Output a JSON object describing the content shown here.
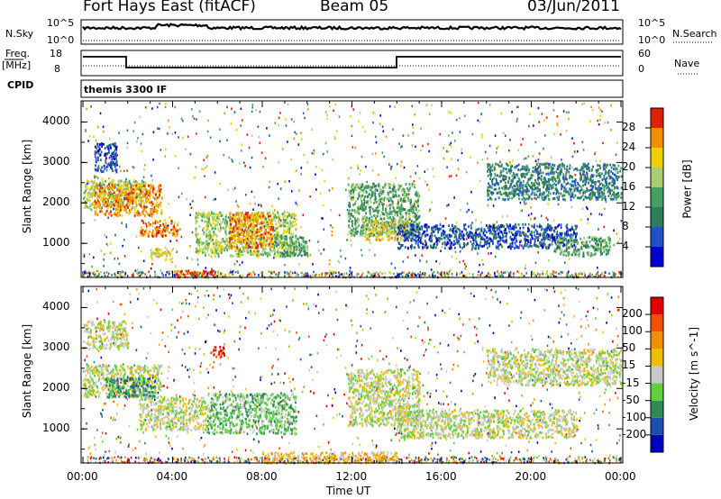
{
  "header": {
    "station": "Fort Hays East (fitACF)",
    "beam": "Beam 05",
    "date": "03/Jun/2011"
  },
  "strips": {
    "nsky_label": "N.Sky",
    "nsky_ticks": [
      "10^5",
      "10^0"
    ],
    "nsearch_label": "N.Search",
    "nsearch_ticks": [
      "10^5",
      "10^0"
    ],
    "freq_label": "Freq.",
    "freq_unit": "[MHz]",
    "freq_ticks": [
      "18",
      "8"
    ],
    "nave_label": "Nave",
    "nave_ticks": [
      "60",
      "0"
    ],
    "cpid_label": "CPID",
    "cpid_text": "themis 3300 IF"
  },
  "chart_data": [
    {
      "type": "heatmap",
      "name": "power",
      "ylabel": "Slant Range [km]",
      "xlabel": "",
      "ylim": [
        180,
        4500
      ],
      "yticks": [
        "4000",
        "3000",
        "2000",
        "1000"
      ],
      "colorbar_label": "Power [dB]",
      "colorbar_ticks": [
        "28",
        "24",
        "20",
        "16",
        "12",
        "8",
        "4"
      ],
      "colorbar_colors": [
        "#0000d0",
        "#1f52c8",
        "#2e7d5a",
        "#44a060",
        "#a8d070",
        "#f0d000",
        "#f09000",
        "#e02000"
      ],
      "bands": [
        {
          "t0": 0.0,
          "t1": 2.8,
          "r0": 1900,
          "r1": 2600,
          "level": 4
        },
        {
          "t0": 0.5,
          "t1": 3.5,
          "r0": 1700,
          "r1": 2500,
          "level": 6
        },
        {
          "t0": 2.5,
          "t1": 4.2,
          "r0": 1200,
          "r1": 1600,
          "level": 6
        },
        {
          "t0": 3.0,
          "t1": 4.0,
          "r0": 600,
          "r1": 900,
          "level": 5
        },
        {
          "t0": 5.0,
          "t1": 9.5,
          "r0": 700,
          "r1": 1800,
          "level": 4
        },
        {
          "t0": 6.5,
          "t1": 8.5,
          "r0": 900,
          "r1": 1800,
          "level": 6
        },
        {
          "t0": 8.5,
          "t1": 10.0,
          "r0": 700,
          "r1": 1200,
          "level": 3
        },
        {
          "t0": 11.8,
          "t1": 15.0,
          "r0": 1200,
          "r1": 2500,
          "level": 3
        },
        {
          "t0": 12.5,
          "t1": 14.5,
          "r0": 1100,
          "r1": 1600,
          "level": 5
        },
        {
          "t0": 14.0,
          "t1": 22.0,
          "r0": 900,
          "r1": 1500,
          "level": 1
        },
        {
          "t0": 18.0,
          "t1": 24.0,
          "r0": 2100,
          "r1": 3000,
          "level": 2
        },
        {
          "t0": 21.0,
          "t1": 23.5,
          "r0": 700,
          "r1": 1200,
          "level": 3
        },
        {
          "t0": 0.5,
          "t1": 1.5,
          "r0": 2800,
          "r1": 3500,
          "level": 1
        },
        {
          "t0": 4.0,
          "t1": 6.0,
          "r0": 180,
          "r1": 350,
          "level": 7
        }
      ]
    },
    {
      "type": "heatmap",
      "name": "velocity",
      "ylabel": "Slant Range [km]",
      "xlabel": "Time UT",
      "ylim": [
        180,
        4500
      ],
      "yticks": [
        "4000",
        "3000",
        "2000",
        "1000"
      ],
      "colorbar_label": "Velocity [m s^-1]",
      "colorbar_ticks": [
        "200",
        "100",
        "50",
        "15",
        "-15",
        "-50",
        "-100",
        "-200"
      ],
      "colorbar_colors": [
        "#0000c0",
        "#1a4fb0",
        "#2e8b57",
        "#60d040",
        "#c8c8c8",
        "#f0c000",
        "#f09000",
        "#f05000",
        "#e00000"
      ],
      "bands": [
        {
          "t0": 0.0,
          "t1": 3.5,
          "r0": 1800,
          "r1": 2600,
          "level": 4
        },
        {
          "t0": 1.0,
          "t1": 3.2,
          "r0": 1800,
          "r1": 2300,
          "level": 2
        },
        {
          "t0": 2.5,
          "t1": 5.5,
          "r0": 1000,
          "r1": 1800,
          "level": 4
        },
        {
          "t0": 5.5,
          "t1": 9.5,
          "r0": 900,
          "r1": 1900,
          "level": 3
        },
        {
          "t0": 5.8,
          "t1": 6.3,
          "r0": 2800,
          "r1": 3100,
          "level": 8
        },
        {
          "t0": 11.8,
          "t1": 15.0,
          "r0": 1100,
          "r1": 2500,
          "level": 4
        },
        {
          "t0": 14.0,
          "t1": 22.0,
          "r0": 800,
          "r1": 1500,
          "level": 4
        },
        {
          "t0": 18.0,
          "t1": 24.0,
          "r0": 2100,
          "r1": 3000,
          "level": 4
        },
        {
          "t0": 8.0,
          "t1": 14.0,
          "r0": 180,
          "r1": 450,
          "level": 5
        },
        {
          "t0": 0.0,
          "t1": 2.0,
          "r0": 3000,
          "r1": 3700,
          "level": 4
        }
      ]
    }
  ],
  "time_axis": {
    "label": "Time UT",
    "ticks": [
      "00:00",
      "04:00",
      "08:00",
      "12:00",
      "16:00",
      "20:00",
      "00:00"
    ]
  }
}
